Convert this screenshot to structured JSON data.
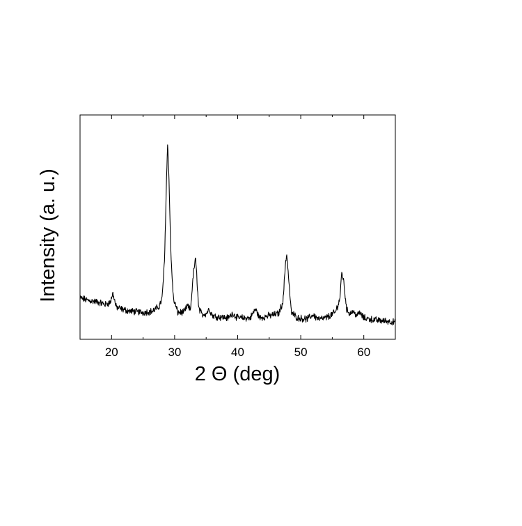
{
  "chart_data": {
    "type": "line",
    "xlabel": "2 Θ (deg)",
    "ylabel": "Intensity (a. u.)",
    "xlim": [
      15,
      65
    ],
    "ylim": [
      0,
      100
    ],
    "x_ticks": [
      20,
      30,
      40,
      50,
      60
    ],
    "x_tick_labels": [
      "20",
      "30",
      "40",
      "50",
      "60"
    ],
    "y_ticks_labeled": false,
    "grid": false,
    "legend": "none",
    "line_color": "#000000",
    "series": [
      {
        "x": [
          15.0,
          16.0,
          17.0,
          18.0,
          19.0,
          19.8,
          20.2,
          20.4,
          20.7,
          21.5,
          23.0,
          25.0,
          26.5,
          27.5,
          28.0,
          28.4,
          28.7,
          28.9,
          29.1,
          29.4,
          29.8,
          30.5,
          31.5,
          32.0,
          32.5,
          33.0,
          33.3,
          33.5,
          33.8,
          34.3,
          35.0,
          35.5,
          36.0,
          37.0,
          38.5,
          39.2,
          40.0,
          42.0,
          42.8,
          43.5,
          45.0,
          46.5,
          47.2,
          47.6,
          47.8,
          48.0,
          48.5,
          49.5,
          51.0,
          52.0,
          52.3,
          53.0,
          54.0,
          55.5,
          56.2,
          56.5,
          56.8,
          57.3,
          57.8,
          58.2,
          59.0,
          59.3,
          60.0,
          62.0,
          64.0,
          65.0
        ],
        "y": [
          18.5,
          17.5,
          17.0,
          16.5,
          15.5,
          16.5,
          20.5,
          18.5,
          14.5,
          13.5,
          12.5,
          12.0,
          12.5,
          14.5,
          18.0,
          35.0,
          70.0,
          88.0,
          72.0,
          38.0,
          18.0,
          12.0,
          12.0,
          15.0,
          13.0,
          30.0,
          36.0,
          29.0,
          14.0,
          11.0,
          11.5,
          13.5,
          10.5,
          10.0,
          9.5,
          11.5,
          9.5,
          9.5,
          13.5,
          9.5,
          10.5,
          11.5,
          17.0,
          35.0,
          38.0,
          30.0,
          12.0,
          9.5,
          9.0,
          11.0,
          10.0,
          9.0,
          9.5,
          12.0,
          18.0,
          30.0,
          26.0,
          13.0,
          11.5,
          12.5,
          10.5,
          12.0,
          9.5,
          8.5,
          8.0,
          7.5
        ]
      }
    ]
  }
}
